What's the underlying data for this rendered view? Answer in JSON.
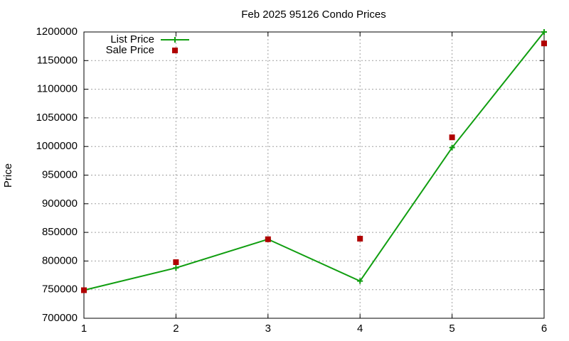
{
  "chart_data": {
    "type": "line",
    "title": "Feb 2025 95126 Condo Prices",
    "y_label": "Price",
    "x": [
      1,
      2,
      3,
      4,
      5,
      6
    ],
    "series": [
      {
        "name": "List Price",
        "color": "#109e10",
        "style": "line-points",
        "values": [
          749000,
          788000,
          838000,
          765000,
          998000,
          1200000
        ]
      },
      {
        "name": "Sale Price",
        "color": "#b00000",
        "style": "points",
        "values": [
          749000,
          798000,
          838000,
          839000,
          1016000,
          1180000
        ]
      }
    ],
    "xlim": [
      1,
      6
    ],
    "xticks": [
      1,
      2,
      3,
      4,
      5,
      6
    ],
    "ylim": [
      700000,
      1200000
    ],
    "yticks": [
      700000,
      750000,
      800000,
      850000,
      900000,
      950000,
      1000000,
      1050000,
      1100000,
      1150000,
      1200000
    ],
    "grid": true,
    "legend": "top-left"
  }
}
